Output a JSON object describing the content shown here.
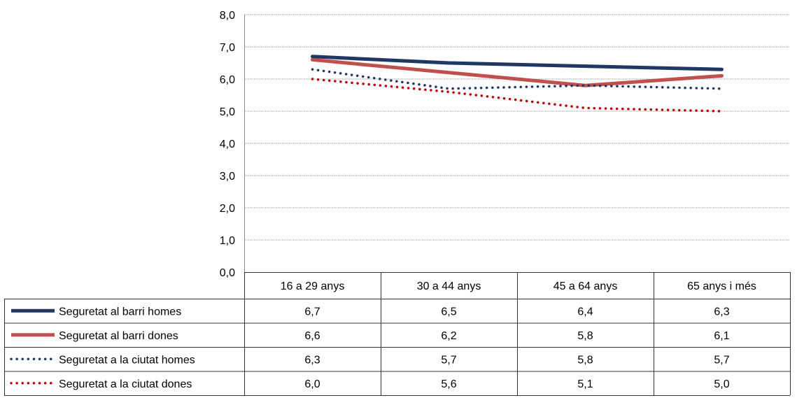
{
  "chart_data": {
    "type": "line",
    "title": "",
    "xlabel": "",
    "ylabel": "",
    "ylim": [
      0,
      8
    ],
    "yticks": [
      "0,0",
      "1,0",
      "2,0",
      "3,0",
      "4,0",
      "5,0",
      "6,0",
      "7,0",
      "8,0"
    ],
    "grid": true,
    "legend": "data-table-left",
    "categories": [
      "16 a 29 anys",
      "30 a 44 anys",
      "45 a 64 anys",
      "65 anys i més"
    ],
    "series": [
      {
        "name": "Seguretat al barri homes",
        "values": [
          6.7,
          6.5,
          6.4,
          6.3
        ],
        "labels": [
          "6,7",
          "6,5",
          "6,4",
          "6,3"
        ],
        "color": "#1f3864",
        "style": "solid"
      },
      {
        "name": "Seguretat al barri dones",
        "values": [
          6.6,
          6.2,
          5.8,
          6.1
        ],
        "labels": [
          "6,6",
          "6,2",
          "5,8",
          "6,1"
        ],
        "color": "#c0504d",
        "style": "solid"
      },
      {
        "name": "Seguretat a la ciutat homes",
        "values": [
          6.3,
          5.7,
          5.8,
          5.7
        ],
        "labels": [
          "6,3",
          "5,7",
          "5,8",
          "5,7"
        ],
        "color": "#1f3864",
        "style": "dotted"
      },
      {
        "name": "Seguretat a la ciutat dones",
        "values": [
          6.0,
          5.6,
          5.1,
          5.0
        ],
        "labels": [
          "6,0",
          "5,6",
          "5,1",
          "5,0"
        ],
        "color": "#c00000",
        "style": "dotted"
      }
    ]
  }
}
